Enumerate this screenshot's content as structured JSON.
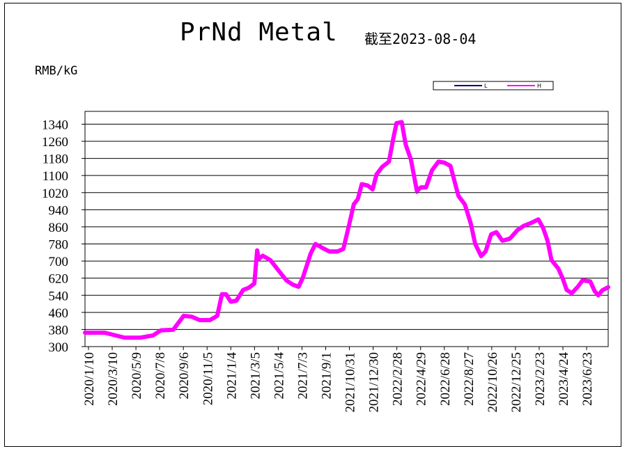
{
  "chart_data": {
    "type": "line",
    "title": "PrNd Metal",
    "subtitle": "截至2023-08-04",
    "ylabel": "RMB/kG",
    "ylim": [
      300,
      1400
    ],
    "yticks": [
      300,
      380,
      460,
      540,
      620,
      700,
      780,
      860,
      940,
      1020,
      1100,
      1180,
      1260,
      1340
    ],
    "xtick_labels": [
      "2020/1/10",
      "2020/3/10",
      "2020/5/9",
      "2020/7/8",
      "2020/9/6",
      "2020/11/5",
      "2021/1/4",
      "2021/3/5",
      "2021/5/4",
      "2021/7/3",
      "2021/9/1",
      "2021/10/31",
      "2021/12/30",
      "2022/2/28",
      "2022/4/29",
      "2022/6/28",
      "2022/8/27",
      "2022/10/26",
      "2022/12/25",
      "2023/2/23",
      "2023/4/24",
      "2023/6/23"
    ],
    "x_range": [
      "2020-01-02",
      "2023-08-04"
    ],
    "grid": "horizontal",
    "legend_position": "top-right",
    "series": [
      {
        "name": "L",
        "color": "#000080",
        "points": [
          [
            "2020-01-02",
            362
          ],
          [
            "2020-02-20",
            362
          ],
          [
            "2020-04-10",
            338
          ],
          [
            "2020-05-20",
            338
          ],
          [
            "2020-06-20",
            348
          ],
          [
            "2020-07-10",
            372
          ],
          [
            "2020-08-10",
            375
          ],
          [
            "2020-09-05",
            440
          ],
          [
            "2020-09-25",
            436
          ],
          [
            "2020-10-15",
            420
          ],
          [
            "2020-11-10",
            420
          ],
          [
            "2020-11-28",
            440
          ],
          [
            "2020-12-10",
            540
          ],
          [
            "2020-12-20",
            540
          ],
          [
            "2021-01-01",
            505
          ],
          [
            "2021-01-15",
            510
          ],
          [
            "2021-02-01",
            560
          ],
          [
            "2021-02-15",
            570
          ],
          [
            "2021-03-01",
            590
          ],
          [
            "2021-03-08",
            745
          ],
          [
            "2021-03-12",
            705
          ],
          [
            "2021-03-22",
            720
          ],
          [
            "2021-04-10",
            700
          ],
          [
            "2021-05-01",
            650
          ],
          [
            "2021-05-20",
            605
          ],
          [
            "2021-06-05",
            585
          ],
          [
            "2021-06-20",
            575
          ],
          [
            "2021-07-01",
            620
          ],
          [
            "2021-07-20",
            730
          ],
          [
            "2021-08-01",
            775
          ],
          [
            "2021-08-20",
            755
          ],
          [
            "2021-09-05",
            740
          ],
          [
            "2021-09-25",
            740
          ],
          [
            "2021-10-10",
            752
          ],
          [
            "2021-10-25",
            870
          ],
          [
            "2021-11-05",
            960
          ],
          [
            "2021-11-15",
            985
          ],
          [
            "2021-11-25",
            1055
          ],
          [
            "2021-12-10",
            1048
          ],
          [
            "2021-12-22",
            1030
          ],
          [
            "2022-01-01",
            1100
          ],
          [
            "2022-01-15",
            1135
          ],
          [
            "2022-02-01",
            1160
          ],
          [
            "2022-02-12",
            1270
          ],
          [
            "2022-02-20",
            1340
          ],
          [
            "2022-03-05",
            1345
          ],
          [
            "2022-03-15",
            1240
          ],
          [
            "2022-03-28",
            1170
          ],
          [
            "2022-04-12",
            1020
          ],
          [
            "2022-04-22",
            1040
          ],
          [
            "2022-05-05",
            1040
          ],
          [
            "2022-05-20",
            1120
          ],
          [
            "2022-06-05",
            1160
          ],
          [
            "2022-06-20",
            1155
          ],
          [
            "2022-07-05",
            1140
          ],
          [
            "2022-07-25",
            1000
          ],
          [
            "2022-08-10",
            960
          ],
          [
            "2022-08-25",
            870
          ],
          [
            "2022-09-05",
            775
          ],
          [
            "2022-09-20",
            718
          ],
          [
            "2022-10-01",
            740
          ],
          [
            "2022-10-15",
            820
          ],
          [
            "2022-10-28",
            830
          ],
          [
            "2022-11-12",
            790
          ],
          [
            "2022-12-01",
            800
          ],
          [
            "2022-12-20",
            840
          ],
          [
            "2023-01-05",
            860
          ],
          [
            "2023-01-25",
            875
          ],
          [
            "2023-02-10",
            890
          ],
          [
            "2023-02-22",
            850
          ],
          [
            "2023-03-05",
            790
          ],
          [
            "2023-03-15",
            700
          ],
          [
            "2023-04-01",
            660
          ],
          [
            "2023-04-12",
            615
          ],
          [
            "2023-04-22",
            560
          ],
          [
            "2023-05-05",
            545
          ],
          [
            "2023-05-20",
            575
          ],
          [
            "2023-06-01",
            605
          ],
          [
            "2023-06-20",
            600
          ],
          [
            "2023-07-01",
            555
          ],
          [
            "2023-07-10",
            535
          ],
          [
            "2023-07-20",
            558
          ],
          [
            "2023-08-04",
            572
          ]
        ]
      },
      {
        "name": "H",
        "color": "#ff00ff",
        "points": [
          [
            "2020-01-02",
            365
          ],
          [
            "2020-02-20",
            365
          ],
          [
            "2020-04-10",
            342
          ],
          [
            "2020-05-20",
            342
          ],
          [
            "2020-06-20",
            352
          ],
          [
            "2020-07-10",
            376
          ],
          [
            "2020-08-10",
            379
          ],
          [
            "2020-09-05",
            444
          ],
          [
            "2020-09-25",
            440
          ],
          [
            "2020-10-15",
            424
          ],
          [
            "2020-11-10",
            424
          ],
          [
            "2020-11-28",
            444
          ],
          [
            "2020-12-10",
            545
          ],
          [
            "2020-12-20",
            545
          ],
          [
            "2021-01-01",
            510
          ],
          [
            "2021-01-15",
            515
          ],
          [
            "2021-02-01",
            565
          ],
          [
            "2021-02-15",
            575
          ],
          [
            "2021-03-01",
            595
          ],
          [
            "2021-03-08",
            750
          ],
          [
            "2021-03-12",
            710
          ],
          [
            "2021-03-22",
            725
          ],
          [
            "2021-04-10",
            705
          ],
          [
            "2021-05-01",
            655
          ],
          [
            "2021-05-20",
            610
          ],
          [
            "2021-06-05",
            590
          ],
          [
            "2021-06-20",
            580
          ],
          [
            "2021-07-01",
            625
          ],
          [
            "2021-07-20",
            735
          ],
          [
            "2021-08-01",
            780
          ],
          [
            "2021-08-20",
            760
          ],
          [
            "2021-09-05",
            745
          ],
          [
            "2021-09-25",
            745
          ],
          [
            "2021-10-10",
            757
          ],
          [
            "2021-10-25",
            875
          ],
          [
            "2021-11-05",
            965
          ],
          [
            "2021-11-15",
            990
          ],
          [
            "2021-11-25",
            1060
          ],
          [
            "2021-12-10",
            1053
          ],
          [
            "2021-12-22",
            1035
          ],
          [
            "2022-01-01",
            1105
          ],
          [
            "2022-01-15",
            1140
          ],
          [
            "2022-02-01",
            1165
          ],
          [
            "2022-02-12",
            1275
          ],
          [
            "2022-02-20",
            1345
          ],
          [
            "2022-03-05",
            1350
          ],
          [
            "2022-03-15",
            1245
          ],
          [
            "2022-03-28",
            1175
          ],
          [
            "2022-04-12",
            1028
          ],
          [
            "2022-04-22",
            1045
          ],
          [
            "2022-05-05",
            1045
          ],
          [
            "2022-05-20",
            1125
          ],
          [
            "2022-06-05",
            1165
          ],
          [
            "2022-06-20",
            1160
          ],
          [
            "2022-07-05",
            1145
          ],
          [
            "2022-07-25",
            1005
          ],
          [
            "2022-08-10",
            965
          ],
          [
            "2022-08-25",
            875
          ],
          [
            "2022-09-05",
            780
          ],
          [
            "2022-09-20",
            723
          ],
          [
            "2022-10-01",
            745
          ],
          [
            "2022-10-15",
            825
          ],
          [
            "2022-10-28",
            835
          ],
          [
            "2022-11-12",
            795
          ],
          [
            "2022-12-01",
            805
          ],
          [
            "2022-12-20",
            845
          ],
          [
            "2023-01-05",
            865
          ],
          [
            "2023-01-25",
            880
          ],
          [
            "2023-02-10",
            895
          ],
          [
            "2023-02-22",
            855
          ],
          [
            "2023-03-05",
            795
          ],
          [
            "2023-03-15",
            705
          ],
          [
            "2023-04-01",
            665
          ],
          [
            "2023-04-12",
            620
          ],
          [
            "2023-04-22",
            565
          ],
          [
            "2023-05-05",
            550
          ],
          [
            "2023-05-20",
            580
          ],
          [
            "2023-06-01",
            610
          ],
          [
            "2023-06-20",
            605
          ],
          [
            "2023-07-01",
            560
          ],
          [
            "2023-07-10",
            540
          ],
          [
            "2023-07-20",
            563
          ],
          [
            "2023-08-04",
            578
          ]
        ]
      }
    ]
  }
}
